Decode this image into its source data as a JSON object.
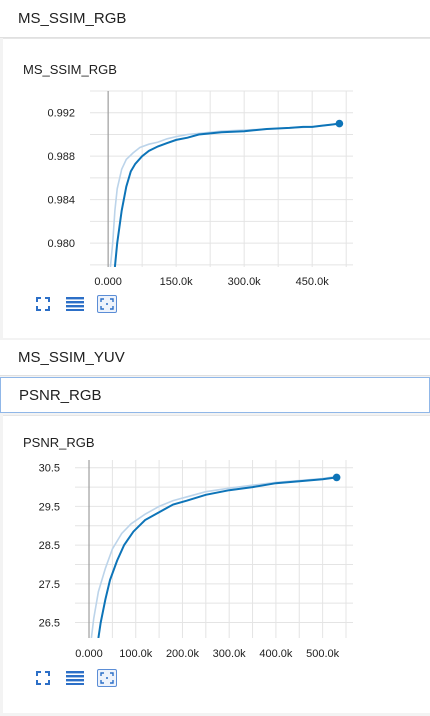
{
  "sections": [
    {
      "title": "MS_SSIM_RGB"
    },
    {
      "title": "MS_SSIM_YUV"
    },
    {
      "title": "PSNR_RGB"
    }
  ],
  "cards": [
    {
      "title": "MS_SSIM_RGB",
      "toolbar": [
        "expand-icon",
        "list-icon",
        "fit-icon"
      ],
      "chart_data": {
        "type": "line",
        "title": "MS_SSIM_RGB",
        "xlabel": "",
        "ylabel": "",
        "xlim": [
          -40000,
          540000
        ],
        "ylim": [
          0.9778,
          0.994
        ],
        "xticks": [
          0,
          150000,
          300000,
          450000
        ],
        "xtick_labels": [
          "0.000",
          "150.0k",
          "300.0k",
          "450.0k"
        ],
        "yticks": [
          0.98,
          0.984,
          0.988,
          0.992
        ],
        "ytick_labels": [
          "0.980",
          "0.984",
          "0.988",
          "0.992"
        ],
        "grid": true,
        "series": [
          {
            "role": "smoothed",
            "color": "#0d74b8",
            "x": [
              15000,
              20000,
              30000,
              40000,
              50000,
              60000,
              75000,
              90000,
              110000,
              130000,
              150000,
              175000,
              200000,
              250000,
              300000,
              350000,
              400000,
              430000,
              450000,
              470000,
              490000,
              510000
            ],
            "y": [
              0.9778,
              0.98,
              0.983,
              0.9852,
              0.9866,
              0.9873,
              0.988,
              0.9885,
              0.9889,
              0.9892,
              0.9895,
              0.9897,
              0.99,
              0.9902,
              0.9903,
              0.9905,
              0.9906,
              0.9907,
              0.9907,
              0.9908,
              0.9909,
              0.991
            ]
          },
          {
            "role": "raw",
            "color": "#bcd4ea",
            "x": [
              5000,
              10000,
              15000,
              20000,
              30000,
              40000,
              55000,
              70000,
              90000,
              110000,
              130000,
              150000,
              175000,
              200000,
              250000,
              300000,
              350000,
              400000,
              450000,
              510000
            ],
            "y": [
              0.9778,
              0.98,
              0.983,
              0.985,
              0.9868,
              0.9877,
              0.9883,
              0.9888,
              0.9891,
              0.9893,
              0.9896,
              0.9898,
              0.99,
              0.9901,
              0.9903,
              0.9904,
              0.9905,
              0.9906,
              0.9907,
              0.991
            ]
          }
        ],
        "endpoint": {
          "x": 510000,
          "y": 0.991
        }
      }
    },
    {
      "title": "PSNR_RGB",
      "toolbar": [
        "expand-icon",
        "list-icon",
        "fit-icon"
      ],
      "chart_data": {
        "type": "line",
        "title": "PSNR_RGB",
        "xlabel": "",
        "ylabel": "",
        "xlim": [
          -30000,
          565000
        ],
        "ylim": [
          26.1,
          30.7
        ],
        "xticks": [
          0,
          100000,
          200000,
          300000,
          400000,
          500000
        ],
        "xtick_labels": [
          "0.000",
          "100.0k",
          "200.0k",
          "300.0k",
          "400.0k",
          "500.0k"
        ],
        "yticks": [
          26.5,
          27.5,
          28.5,
          29.5,
          30.5
        ],
        "ytick_labels": [
          "26.5",
          "27.5",
          "28.5",
          "29.5",
          "30.5"
        ],
        "grid": true,
        "series": [
          {
            "role": "smoothed",
            "color": "#0d74b8",
            "x": [
              20000,
              25000,
              35000,
              45000,
              60000,
              75000,
              95000,
              120000,
              150000,
              180000,
              210000,
              250000,
              300000,
              350000,
              400000,
              450000,
              500000,
              530000
            ],
            "y": [
              26.1,
              26.5,
              27.1,
              27.6,
              28.1,
              28.5,
              28.85,
              29.15,
              29.35,
              29.55,
              29.65,
              29.8,
              29.92,
              30.0,
              30.1,
              30.15,
              30.2,
              30.25
            ]
          },
          {
            "role": "raw",
            "color": "#bcd4ea",
            "x": [
              5000,
              10000,
              20000,
              35000,
              50000,
              70000,
              90000,
              120000,
              150000,
              180000,
              210000,
              250000,
              300000,
              350000,
              400000,
              450000,
              500000,
              530000
            ],
            "y": [
              26.1,
              26.6,
              27.3,
              27.9,
              28.4,
              28.8,
              29.05,
              29.3,
              29.5,
              29.65,
              29.75,
              29.88,
              29.97,
              30.05,
              30.12,
              30.17,
              30.22,
              30.27
            ]
          }
        ],
        "endpoint": {
          "x": 530000,
          "y": 30.25
        }
      }
    }
  ]
}
